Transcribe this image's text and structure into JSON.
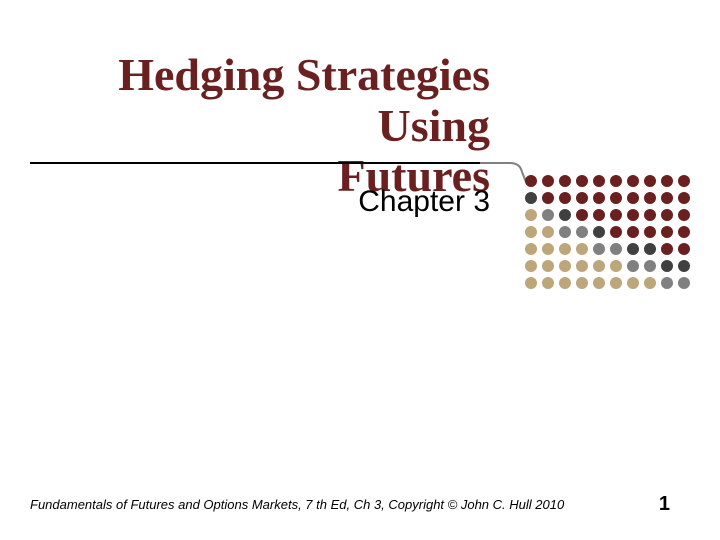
{
  "slide": {
    "title_line1": "Hedging Strategies Using",
    "title_line2": "Futures",
    "title_color": "#6b2020",
    "title_fontsize": 46,
    "subtitle": "Chapter 3",
    "subtitle_fontsize": 30,
    "footer": "Fundamentals of Futures and Options Markets, 7 th Ed, Ch 3, Copyright © John C. Hull 2010",
    "page_number": "1",
    "background_color": "#ffffff",
    "rule_color": "#000000"
  },
  "dot_grid": {
    "rows": 7,
    "cols": 10,
    "dot_size": 12,
    "gap": 5,
    "colors": [
      [
        "#6b2020",
        "#6b2020",
        "#6b2020",
        "#6b2020",
        "#6b2020",
        "#6b2020",
        "#6b2020",
        "#6b2020",
        "#6b2020",
        "#6b2020"
      ],
      [
        "#404040",
        "#6b2020",
        "#6b2020",
        "#6b2020",
        "#6b2020",
        "#6b2020",
        "#6b2020",
        "#6b2020",
        "#6b2020",
        "#6b2020"
      ],
      [
        "#bda77a",
        "#808080",
        "#404040",
        "#6b2020",
        "#6b2020",
        "#6b2020",
        "#6b2020",
        "#6b2020",
        "#6b2020",
        "#6b2020"
      ],
      [
        "#bda77a",
        "#bda77a",
        "#808080",
        "#808080",
        "#404040",
        "#6b2020",
        "#6b2020",
        "#6b2020",
        "#6b2020",
        "#6b2020"
      ],
      [
        "#bda77a",
        "#bda77a",
        "#bda77a",
        "#bda77a",
        "#808080",
        "#808080",
        "#404040",
        "#404040",
        "#6b2020",
        "#6b2020"
      ],
      [
        "#bda77a",
        "#bda77a",
        "#bda77a",
        "#bda77a",
        "#bda77a",
        "#bda77a",
        "#808080",
        "#808080",
        "#404040",
        "#404040"
      ],
      [
        "#bda77a",
        "#bda77a",
        "#bda77a",
        "#bda77a",
        "#bda77a",
        "#bda77a",
        "#bda77a",
        "#bda77a",
        "#808080",
        "#808080"
      ]
    ]
  },
  "connector": {
    "stroke": "#808080",
    "stroke_width": 2
  }
}
